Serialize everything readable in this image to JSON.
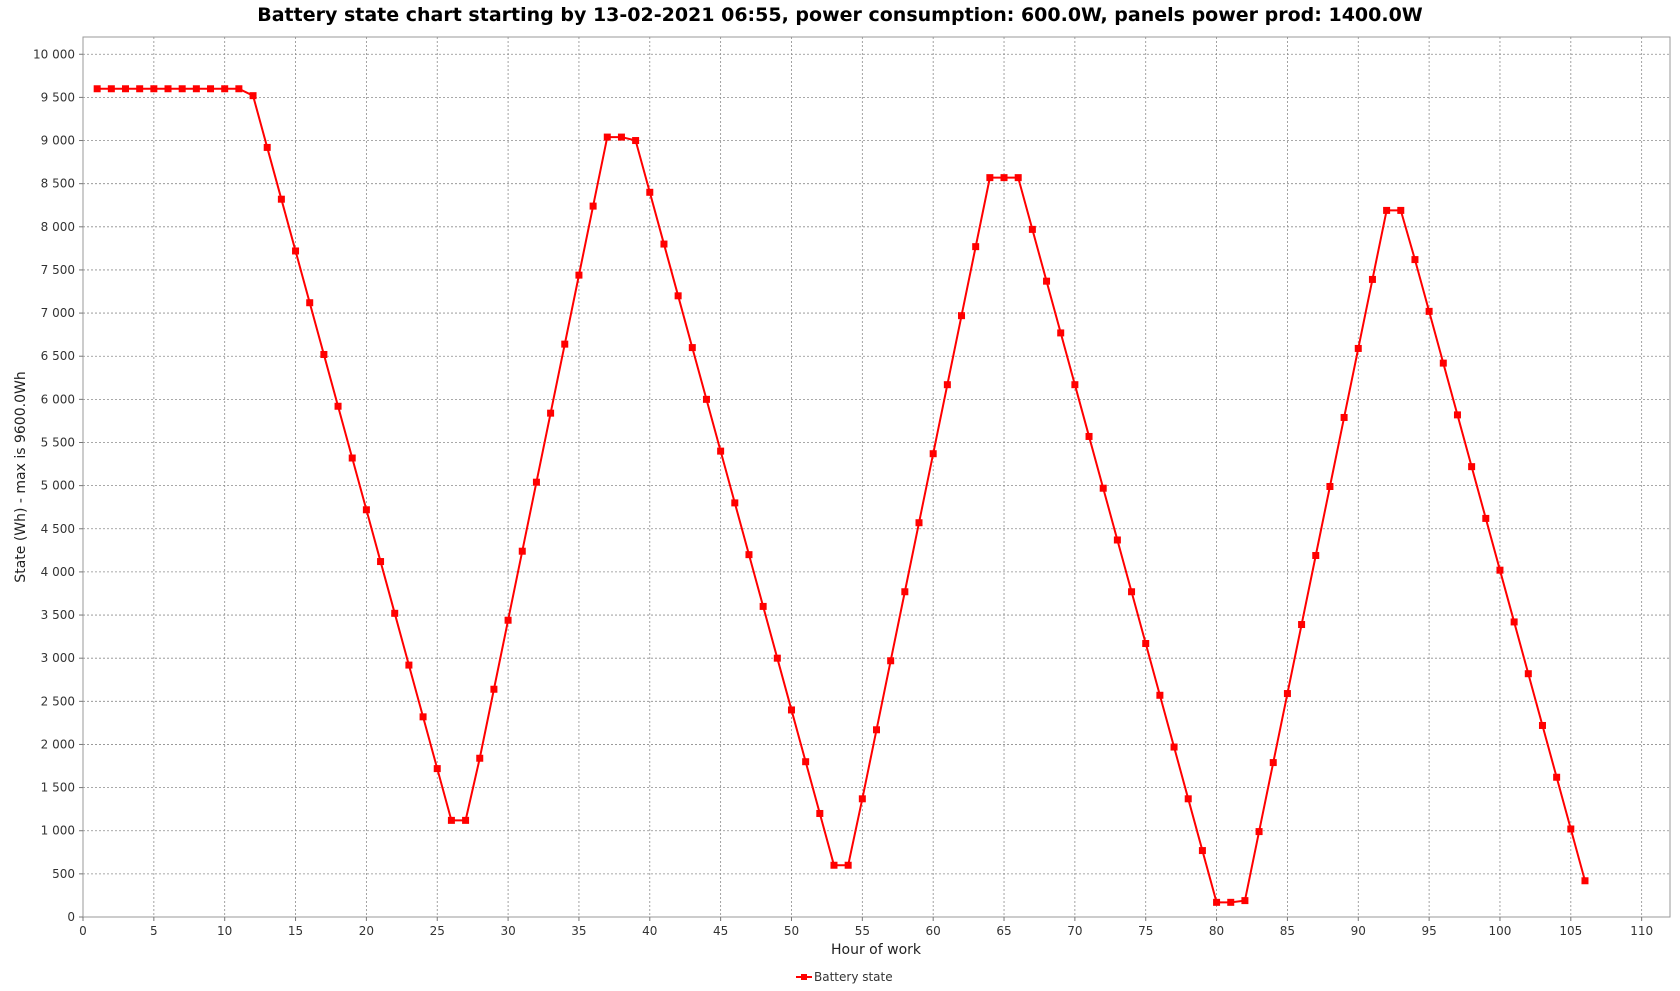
{
  "chart_data": {
    "type": "line",
    "title": "Battery state chart starting by 13-02-2021 06:55, power consumption: 600.0W, panels power prod: 1400.0W",
    "xlabel": "Hour of work",
    "ylabel": "State (Wh) - max is 9600.0Wh",
    "xlim": [
      0,
      112
    ],
    "ylim": [
      0,
      10200
    ],
    "x_ticks": [
      0,
      5,
      10,
      15,
      20,
      25,
      30,
      35,
      40,
      45,
      50,
      55,
      60,
      65,
      70,
      75,
      80,
      85,
      90,
      95,
      100,
      105,
      110
    ],
    "y_ticks": [
      0,
      500,
      1000,
      1500,
      2000,
      2500,
      3000,
      3500,
      4000,
      4500,
      5000,
      5500,
      6000,
      6500,
      7000,
      7500,
      8000,
      8500,
      9000,
      9500,
      10000
    ],
    "y_tick_labels": [
      "0",
      "500",
      "1 000",
      "1 500",
      "2 000",
      "2 500",
      "3 000",
      "3 500",
      "4 000",
      "4 500",
      "5 000",
      "5 500",
      "6 000",
      "6 500",
      "7 000",
      "7 500",
      "8 000",
      "8 500",
      "9 000",
      "9 500",
      "10 000"
    ],
    "grid": true,
    "legend_position": "bottom-center",
    "series": [
      {
        "name": "Battery state",
        "color": "#ff0000",
        "x": [
          1,
          2,
          3,
          4,
          5,
          6,
          7,
          8,
          9,
          10,
          11,
          12,
          13,
          14,
          15,
          16,
          17,
          18,
          19,
          20,
          21,
          22,
          23,
          24,
          25,
          26,
          27,
          28,
          29,
          30,
          31,
          32,
          33,
          34,
          35,
          36,
          37,
          38,
          39,
          40,
          41,
          42,
          43,
          44,
          45,
          46,
          47,
          48,
          49,
          50,
          51,
          52,
          53,
          54,
          55,
          56,
          57,
          58,
          59,
          60,
          61,
          62,
          63,
          64,
          65,
          66,
          67,
          68,
          69,
          70,
          71,
          72,
          73,
          74,
          75,
          76,
          77,
          78,
          79,
          80,
          81,
          82,
          83,
          84,
          85,
          86,
          87,
          88,
          89,
          90,
          91,
          92,
          93,
          94,
          95,
          96,
          97,
          98,
          99,
          100,
          101,
          102,
          103,
          104,
          105,
          106
        ],
        "values": [
          9600,
          9600,
          9600,
          9600,
          9600,
          9600,
          9600,
          9600,
          9600,
          9600,
          9600,
          9520,
          8920,
          8320,
          7720,
          7120,
          6520,
          5920,
          5320,
          4720,
          4120,
          3520,
          2920,
          2320,
          1720,
          1120,
          1120,
          1840,
          2640,
          3440,
          4240,
          5040,
          5840,
          6640,
          7440,
          8240,
          9040,
          9040,
          9000,
          8400,
          7800,
          7200,
          6600,
          6000,
          5400,
          4800,
          4200,
          3600,
          3000,
          2400,
          1800,
          1200,
          600,
          600,
          1370,
          2170,
          2970,
          3770,
          4570,
          5370,
          6170,
          6970,
          7770,
          8570,
          8570,
          8570,
          7970,
          7370,
          6770,
          6170,
          5570,
          4970,
          4370,
          3770,
          3170,
          2570,
          1970,
          1370,
          770,
          170,
          170,
          190,
          990,
          1790,
          2590,
          3390,
          4190,
          4990,
          5790,
          6590,
          7390,
          8190,
          8190,
          7620,
          7020,
          6420,
          5820,
          5220,
          4620,
          4020,
          3420,
          2820,
          2220,
          1620,
          1020,
          420
        ]
      }
    ]
  }
}
